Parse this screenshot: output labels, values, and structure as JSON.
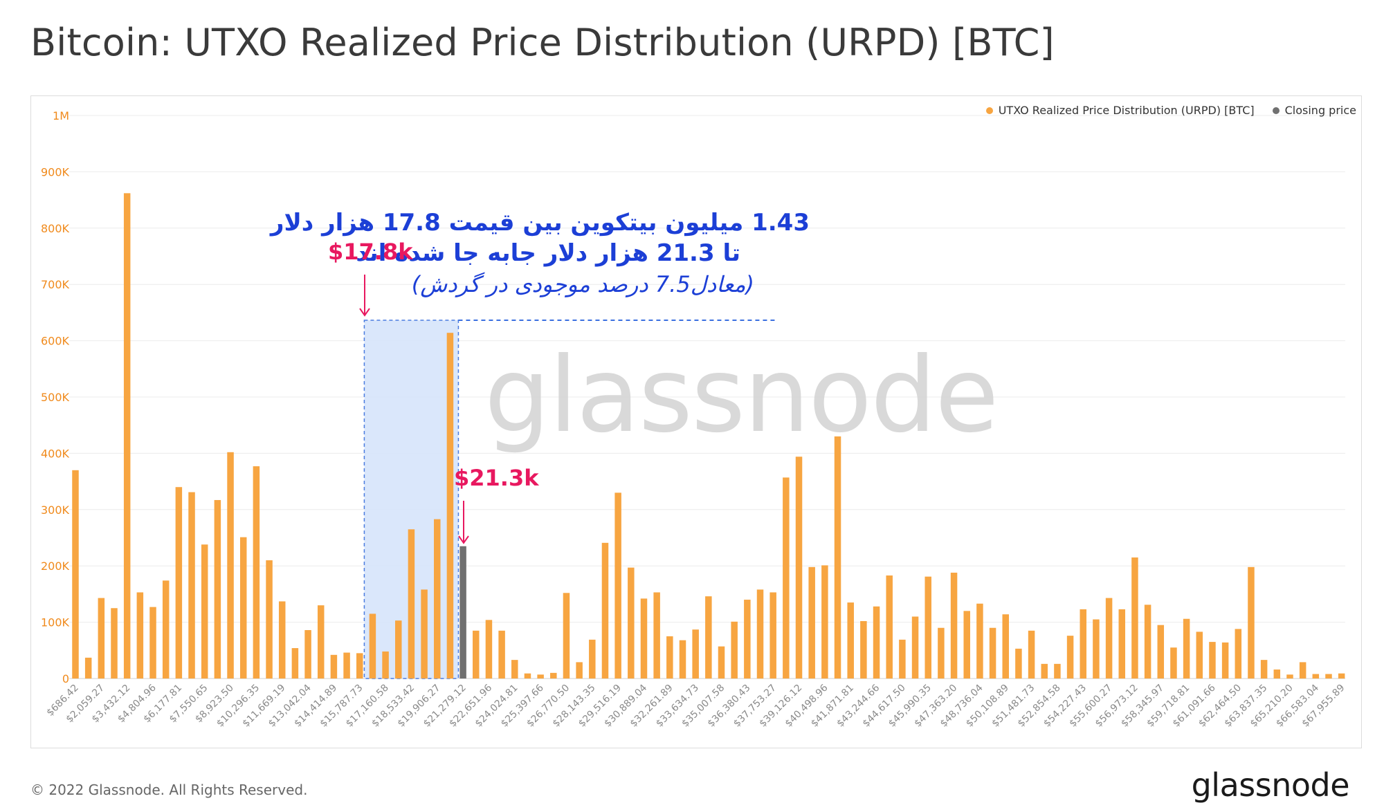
{
  "title": "Bitcoin: UTXO Realized Price Distribution (URPD) [BTC]",
  "legend": {
    "urpd_label": "UTXO Realized Price Distribution (URPD) [BTC]",
    "urpd_color": "#f7a541",
    "close_label": "Closing price",
    "close_color": "#707070"
  },
  "watermark": "glassnode",
  "copyright": "© 2022 Glassnode. All Rights Reserved.",
  "logo": "glassnode",
  "annotations": {
    "farsi_line1": "1.43 میلیون بیتکوین بین قیمت 17.8 هزار دلار",
    "farsi_line2": "تا 21.3 هزار دلار جابه جا شده اند",
    "farsi_line3": "(معادل7.5 درصد موجودی در گردش)",
    "marker_low": "$17.8k",
    "marker_high": "$21.3k",
    "highlight_color": "#d6e4fb",
    "arrow_color": "#e8185f"
  },
  "chart_data": {
    "type": "bar",
    "title": "Bitcoin: UTXO Realized Price Distribution (URPD) [BTC]",
    "ylim": [
      0,
      1000000
    ],
    "yticks": [
      "0",
      "100K",
      "200K",
      "300K",
      "400K",
      "500K",
      "600K",
      "700K",
      "800K",
      "900K",
      "1M"
    ],
    "xtick_labels": [
      "$686.42",
      "$2,059.27",
      "$3,432.12",
      "$4,804.96",
      "$6,177.81",
      "$7,550.65",
      "$8,923.50",
      "$10,296.35",
      "$11,669.19",
      "$13,042.04",
      "$14,414.89",
      "$15,787.73",
      "$17,160.58",
      "$18,533.42",
      "$19,906.27",
      "$21,279.12",
      "$22,651.96",
      "$24,024.81",
      "$25,397.66",
      "$26,770.50",
      "$28,143.35",
      "$29,516.19",
      "$30,889.04",
      "$32,261.89",
      "$33,634.73",
      "$35,007.58",
      "$36,380.43",
      "$37,753.27",
      "$39,126.12",
      "$40,498.96",
      "$41,871.81",
      "$43,244.66",
      "$44,617.50",
      "$45,990.35",
      "$47,363.20",
      "$48,736.04",
      "$50,108.89",
      "$51,481.73",
      "$52,854.58",
      "$54,227.43",
      "$55,600.27",
      "$56,973.12",
      "$58,345.97",
      "$59,718.81",
      "$61,091.66",
      "$62,464.50",
      "$63,837.35",
      "$65,210.20",
      "$66,583.04",
      "$67,955.89"
    ],
    "series": [
      {
        "name": "UTXO Realized Price Distribution (URPD) [BTC]",
        "values": [
          370000,
          37000,
          143000,
          125000,
          862000,
          153000,
          127000,
          174000,
          340000,
          331000,
          238000,
          317000,
          402000,
          251000,
          377000,
          210000,
          137000,
          54000,
          86000,
          130000,
          42000,
          46000,
          45000,
          115000,
          48000,
          103000,
          265000,
          158000,
          283000,
          614000,
          235000,
          85000,
          104000,
          85000,
          33000,
          9000,
          7000,
          10000,
          152000,
          29000,
          69000,
          241000,
          330000,
          197000,
          142000,
          153000,
          75000,
          68000,
          87000,
          146000,
          57000,
          101000,
          140000,
          158000,
          153000,
          357000,
          394000,
          198000,
          201000,
          430000,
          135000,
          102000,
          128000,
          183000,
          69000,
          110000,
          181000,
          90000,
          188000,
          120000,
          133000,
          90000,
          114000,
          53000,
          85000,
          26000,
          26000,
          76000,
          123000,
          105000,
          143000,
          123000,
          215000,
          131000,
          95000,
          55000,
          106000,
          83000,
          65000,
          64000,
          88000,
          198000,
          33000,
          16000,
          7000,
          29000,
          8000,
          8000,
          9000
        ]
      },
      {
        "name": "Closing price",
        "bar_index": 30,
        "value": 235000
      }
    ]
  }
}
